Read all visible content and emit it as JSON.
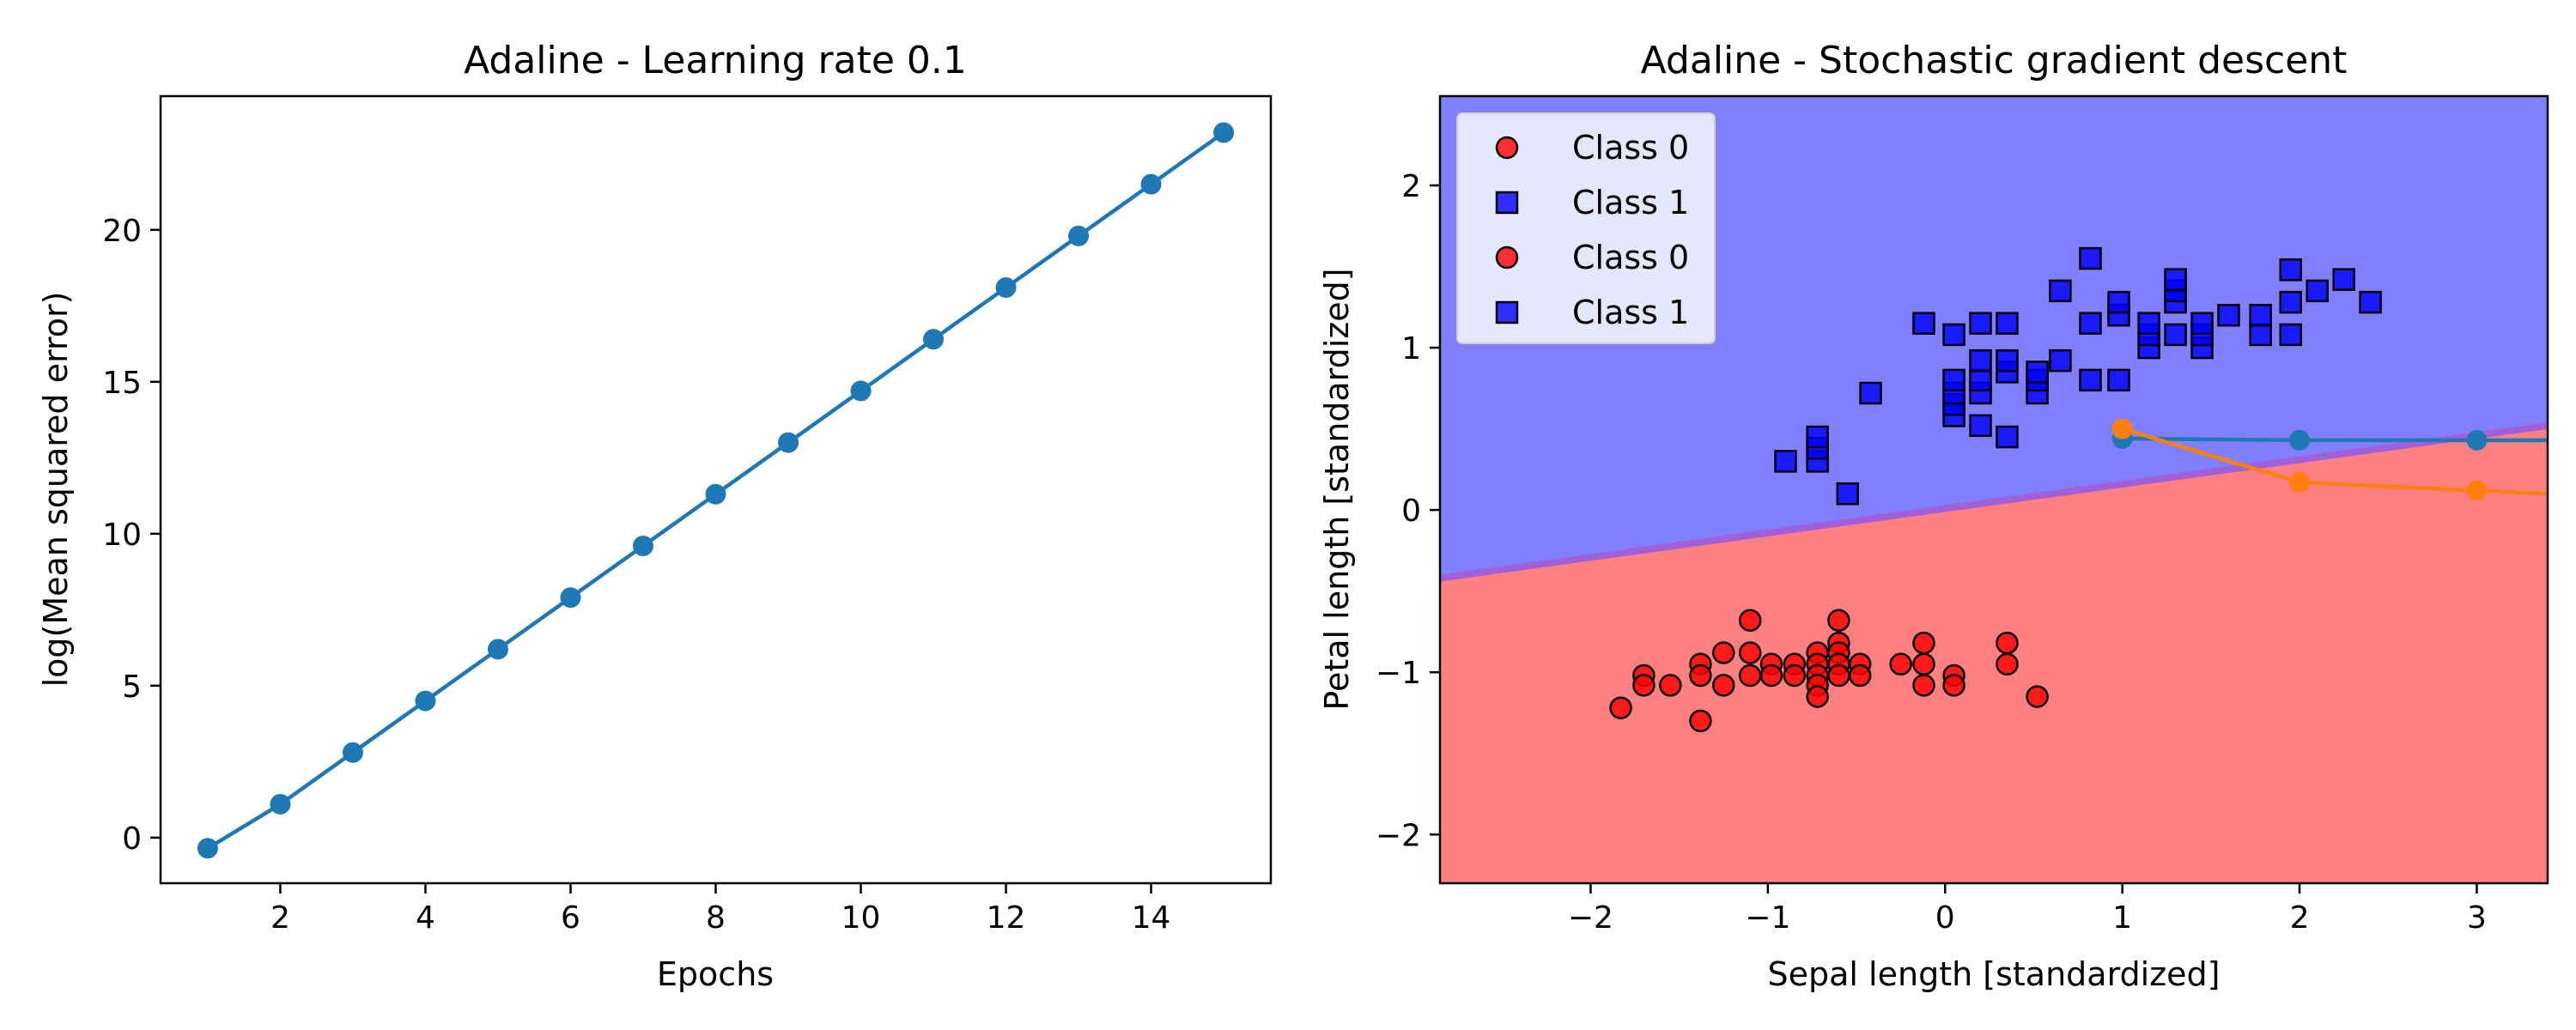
{
  "chart_data": [
    {
      "type": "line",
      "title": "Adaline - Learning rate 0.1",
      "xlabel": "Epochs",
      "ylabel": "log(Mean squared error)",
      "xlim": [
        0.35,
        15.65
      ],
      "ylim": [
        -1.5,
        24.4
      ],
      "xticks": [
        2,
        4,
        6,
        8,
        10,
        12,
        14
      ],
      "yticks": [
        0,
        5,
        10,
        15,
        20
      ],
      "grid": false,
      "series": [
        {
          "name": "",
          "color": "#1f77b4",
          "x": [
            1,
            2,
            3,
            4,
            5,
            6,
            7,
            8,
            9,
            10,
            11,
            12,
            13,
            14,
            15
          ],
          "y": [
            -0.35,
            1.1,
            2.8,
            4.5,
            6.2,
            7.9,
            9.6,
            11.3,
            13.0,
            14.7,
            16.4,
            18.1,
            19.8,
            21.5,
            23.2
          ]
        }
      ]
    },
    {
      "type": "scatter",
      "title": "Adaline - Stochastic gradient descent",
      "xlabel": "Sepal length [standardized]",
      "ylabel": "Petal length [standardized]",
      "xlim": [
        -2.85,
        3.4
      ],
      "ylim": [
        -2.3,
        2.55
      ],
      "xticks": [
        -2,
        -1,
        0,
        1,
        2,
        3
      ],
      "yticks": [
        -2,
        -1,
        0,
        1,
        2
      ],
      "grid": false,
      "legend": {
        "placement": "top-left",
        "entries": [
          {
            "label": "Class 0",
            "marker": "circle",
            "color": "#ff0000"
          },
          {
            "label": "Class 1",
            "marker": "square",
            "color": "#0000ff"
          },
          {
            "label": "Class 0",
            "marker": "circle",
            "color": "#ff0000"
          },
          {
            "label": "Class 1",
            "marker": "square",
            "color": "#0000ff"
          }
        ]
      },
      "decision_regions": {
        "class_0_color": "#ff8080",
        "class_1_color": "#8080ff",
        "boundary": [
          [
            -2.85,
            -0.42
          ],
          [
            3.4,
            0.52
          ]
        ]
      },
      "series": [
        {
          "name": "Class 0",
          "marker": "circle",
          "color": "#ff0000",
          "points": [
            [
              -1.83,
              -1.22
            ],
            [
              -1.7,
              -1.02
            ],
            [
              -1.7,
              -1.08
            ],
            [
              -1.55,
              -1.08
            ],
            [
              -1.38,
              -0.95
            ],
            [
              -1.38,
              -1.02
            ],
            [
              -1.38,
              -1.3
            ],
            [
              -1.25,
              -0.88
            ],
            [
              -1.25,
              -1.08
            ],
            [
              -1.1,
              -0.68
            ],
            [
              -1.1,
              -0.88
            ],
            [
              -1.1,
              -1.02
            ],
            [
              -0.98,
              -0.95
            ],
            [
              -0.98,
              -1.02
            ],
            [
              -0.85,
              -0.95
            ],
            [
              -0.85,
              -1.02
            ],
            [
              -0.72,
              -0.88
            ],
            [
              -0.72,
              -0.95
            ],
            [
              -0.72,
              -1.02
            ],
            [
              -0.72,
              -1.08
            ],
            [
              -0.72,
              -1.15
            ],
            [
              -0.6,
              -0.68
            ],
            [
              -0.6,
              -0.82
            ],
            [
              -0.6,
              -0.88
            ],
            [
              -0.6,
              -0.95
            ],
            [
              -0.6,
              -1.02
            ],
            [
              -0.48,
              -0.95
            ],
            [
              -0.48,
              -1.02
            ],
            [
              -0.25,
              -0.95
            ],
            [
              -0.12,
              -0.82
            ],
            [
              -0.12,
              -0.95
            ],
            [
              -0.12,
              -1.08
            ],
            [
              0.05,
              -1.02
            ],
            [
              0.05,
              -1.08
            ],
            [
              0.35,
              -0.82
            ],
            [
              0.35,
              -0.95
            ],
            [
              0.52,
              -1.15
            ]
          ]
        },
        {
          "name": "Class 1",
          "marker": "square",
          "color": "#0000ff",
          "points": [
            [
              -0.9,
              0.3
            ],
            [
              -0.72,
              0.3
            ],
            [
              -0.72,
              0.38
            ],
            [
              -0.72,
              0.45
            ],
            [
              -0.55,
              0.1
            ],
            [
              -0.42,
              0.72
            ],
            [
              -0.12,
              1.15
            ],
            [
              0.05,
              0.58
            ],
            [
              0.05,
              0.65
            ],
            [
              0.05,
              0.72
            ],
            [
              0.05,
              0.8
            ],
            [
              0.05,
              1.08
            ],
            [
              0.2,
              0.52
            ],
            [
              0.2,
              0.72
            ],
            [
              0.2,
              0.8
            ],
            [
              0.2,
              0.92
            ],
            [
              0.2,
              1.15
            ],
            [
              0.35,
              0.45
            ],
            [
              0.35,
              0.85
            ],
            [
              0.35,
              0.92
            ],
            [
              0.35,
              1.15
            ],
            [
              0.52,
              0.72
            ],
            [
              0.52,
              0.8
            ],
            [
              0.52,
              0.85
            ],
            [
              0.65,
              0.92
            ],
            [
              0.65,
              1.35
            ],
            [
              0.82,
              0.8
            ],
            [
              0.82,
              1.15
            ],
            [
              0.82,
              1.55
            ],
            [
              0.98,
              0.8
            ],
            [
              0.98,
              1.2
            ],
            [
              0.98,
              1.28
            ],
            [
              1.15,
              1.0
            ],
            [
              1.15,
              1.08
            ],
            [
              1.15,
              1.15
            ],
            [
              1.3,
              1.08
            ],
            [
              1.3,
              1.28
            ],
            [
              1.3,
              1.35
            ],
            [
              1.3,
              1.42
            ],
            [
              1.45,
              1.0
            ],
            [
              1.45,
              1.08
            ],
            [
              1.45,
              1.15
            ],
            [
              1.6,
              1.2
            ],
            [
              1.78,
              1.08
            ],
            [
              1.78,
              1.2
            ],
            [
              1.95,
              1.08
            ],
            [
              1.95,
              1.28
            ],
            [
              1.95,
              1.48
            ],
            [
              2.1,
              1.35
            ],
            [
              2.25,
              1.42
            ],
            [
              2.4,
              1.28
            ]
          ]
        },
        {
          "name": "",
          "type": "line",
          "color": "#1f77b4",
          "x": [
            1,
            2,
            3,
            3.4
          ],
          "y": [
            0.44,
            0.43,
            0.43,
            0.43
          ]
        },
        {
          "name": "",
          "type": "line",
          "color": "#ff7f0e",
          "x": [
            1,
            2,
            3,
            3.4
          ],
          "y": [
            0.5,
            0.17,
            0.12,
            0.1
          ]
        }
      ]
    }
  ]
}
